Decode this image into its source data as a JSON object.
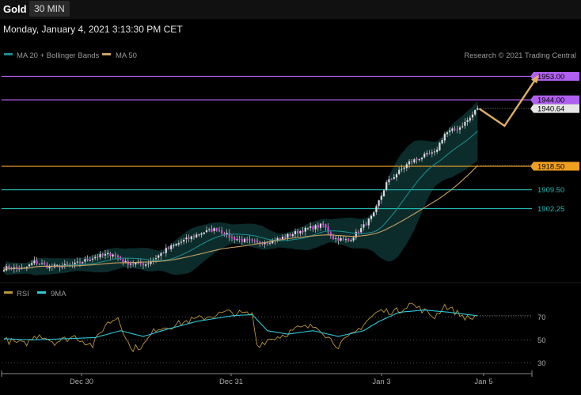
{
  "header": {
    "symbol": "Gold",
    "timeframe": "30 MIN",
    "datetime": "Monday, January 4, 2021 3:13:30 PM CET"
  },
  "legend": {
    "ma20_bb": "MA 20 + Bollinger Bands",
    "ma50": "MA 50",
    "copyright": "Research © 2021 Trading Central",
    "rsi": "RSI",
    "rsi_ma": "9MA"
  },
  "colors": {
    "up": "#dcdcdc",
    "down": "#e040e0",
    "resistance": "#b060f0",
    "support": "#f0a020",
    "pivot": "#20b8b0",
    "ma50": "#c8a060",
    "ma20": "#1c8a8a",
    "bands": "#0e3434",
    "rsi": "#b8963a",
    "rsi_ma": "#30c8d8",
    "forecast": "#e0b060"
  },
  "chart_data": [
    {
      "type": "candlestick",
      "title": "Gold",
      "timeframe": "30 MIN",
      "x_tick_labels": [
        "Dec 30",
        "Dec 31",
        "Jan 3",
        "Jan 5"
      ],
      "ylim": [
        1876,
        1958
      ],
      "levels": [
        {
          "label": "1953.00",
          "value": 1953.0,
          "kind": "resistance"
        },
        {
          "label": "1944.00",
          "value": 1944.0,
          "kind": "resistance"
        },
        {
          "label": "1940.64",
          "value": 1940.64,
          "kind": "last"
        },
        {
          "label": "1918.50",
          "value": 1918.5,
          "kind": "support"
        },
        {
          "label": "1909.50",
          "value": 1909.5,
          "kind": "pivot"
        },
        {
          "label": "1902.25",
          "value": 1902.25,
          "kind": "pivot"
        }
      ],
      "anchor_points": [
        [
          0,
          1879.5
        ],
        [
          8,
          1879.2
        ],
        [
          12,
          1881.8
        ],
        [
          18,
          1880.0
        ],
        [
          27,
          1880.5
        ],
        [
          36,
          1883.8
        ],
        [
          43,
          1885.0
        ],
        [
          48,
          1881.5
        ],
        [
          56,
          1881.0
        ],
        [
          60,
          1883.5
        ],
        [
          64,
          1886.5
        ],
        [
          71,
          1890.0
        ],
        [
          78,
          1893.0
        ],
        [
          84,
          1894.5
        ],
        [
          90,
          1891.0
        ],
        [
          100,
          1889.0
        ],
        [
          108,
          1890.5
        ],
        [
          118,
          1894.0
        ],
        [
          126,
          1896.0
        ],
        [
          130,
          1891.0
        ],
        [
          136,
          1890.0
        ],
        [
          141,
          1894.5
        ],
        [
          146,
          1900.0
        ],
        [
          148,
          1905.0
        ],
        [
          151,
          1912.0
        ],
        [
          156,
          1916.5
        ],
        [
          160,
          1920.0
        ],
        [
          166,
          1922.5
        ],
        [
          170,
          1923.5
        ],
        [
          174,
          1931.0
        ],
        [
          180,
          1933.5
        ],
        [
          184,
          1937.0
        ],
        [
          187,
          1941.0
        ]
      ],
      "forecast_path": [
        [
          187,
          1940.64
        ],
        [
          197,
          1934.0
        ],
        [
          210,
          1953.0
        ]
      ],
      "series": [
        {
          "name": "MA 20 + Bollinger Bands",
          "kind": "ma20"
        },
        {
          "name": "MA 50",
          "kind": "ma50"
        }
      ]
    },
    {
      "type": "line",
      "title": "RSI",
      "ylim": [
        22,
        84
      ],
      "y_ticks": [
        70,
        50,
        30
      ],
      "series": [
        {
          "name": "RSI",
          "anchor_points": [
            [
              0,
              50
            ],
            [
              8,
              46
            ],
            [
              14,
              55
            ],
            [
              20,
              48
            ],
            [
              28,
              53
            ],
            [
              35,
              45
            ],
            [
              40,
              63
            ],
            [
              45,
              70
            ],
            [
              50,
              42
            ],
            [
              55,
              45
            ],
            [
              60,
              60
            ],
            [
              66,
              62
            ],
            [
              72,
              66
            ],
            [
              80,
              70
            ],
            [
              88,
              74
            ],
            [
              98,
              72
            ],
            [
              100,
              45
            ],
            [
              104,
              50
            ],
            [
              110,
              54
            ],
            [
              116,
              60
            ],
            [
              124,
              62
            ],
            [
              128,
              52
            ],
            [
              132,
              45
            ],
            [
              138,
              55
            ],
            [
              144,
              68
            ],
            [
              148,
              75
            ],
            [
              156,
              75
            ],
            [
              160,
              82
            ],
            [
              166,
              75
            ],
            [
              170,
              70
            ],
            [
              174,
              80
            ],
            [
              180,
              72
            ],
            [
              184,
              68
            ],
            [
              187,
              72
            ]
          ]
        },
        {
          "name": "9MA",
          "anchor_points": [
            [
              0,
              51
            ],
            [
              12,
              50
            ],
            [
              24,
              51
            ],
            [
              36,
              52
            ],
            [
              46,
              58
            ],
            [
              55,
              53
            ],
            [
              64,
              59
            ],
            [
              76,
              66
            ],
            [
              90,
              71
            ],
            [
              98,
              72
            ],
            [
              104,
              58
            ],
            [
              112,
              55
            ],
            [
              122,
              58
            ],
            [
              132,
              53
            ],
            [
              142,
              58
            ],
            [
              148,
              66
            ],
            [
              156,
              74
            ],
            [
              166,
              76
            ],
            [
              176,
              74
            ],
            [
              187,
              71
            ]
          ]
        }
      ]
    }
  ]
}
